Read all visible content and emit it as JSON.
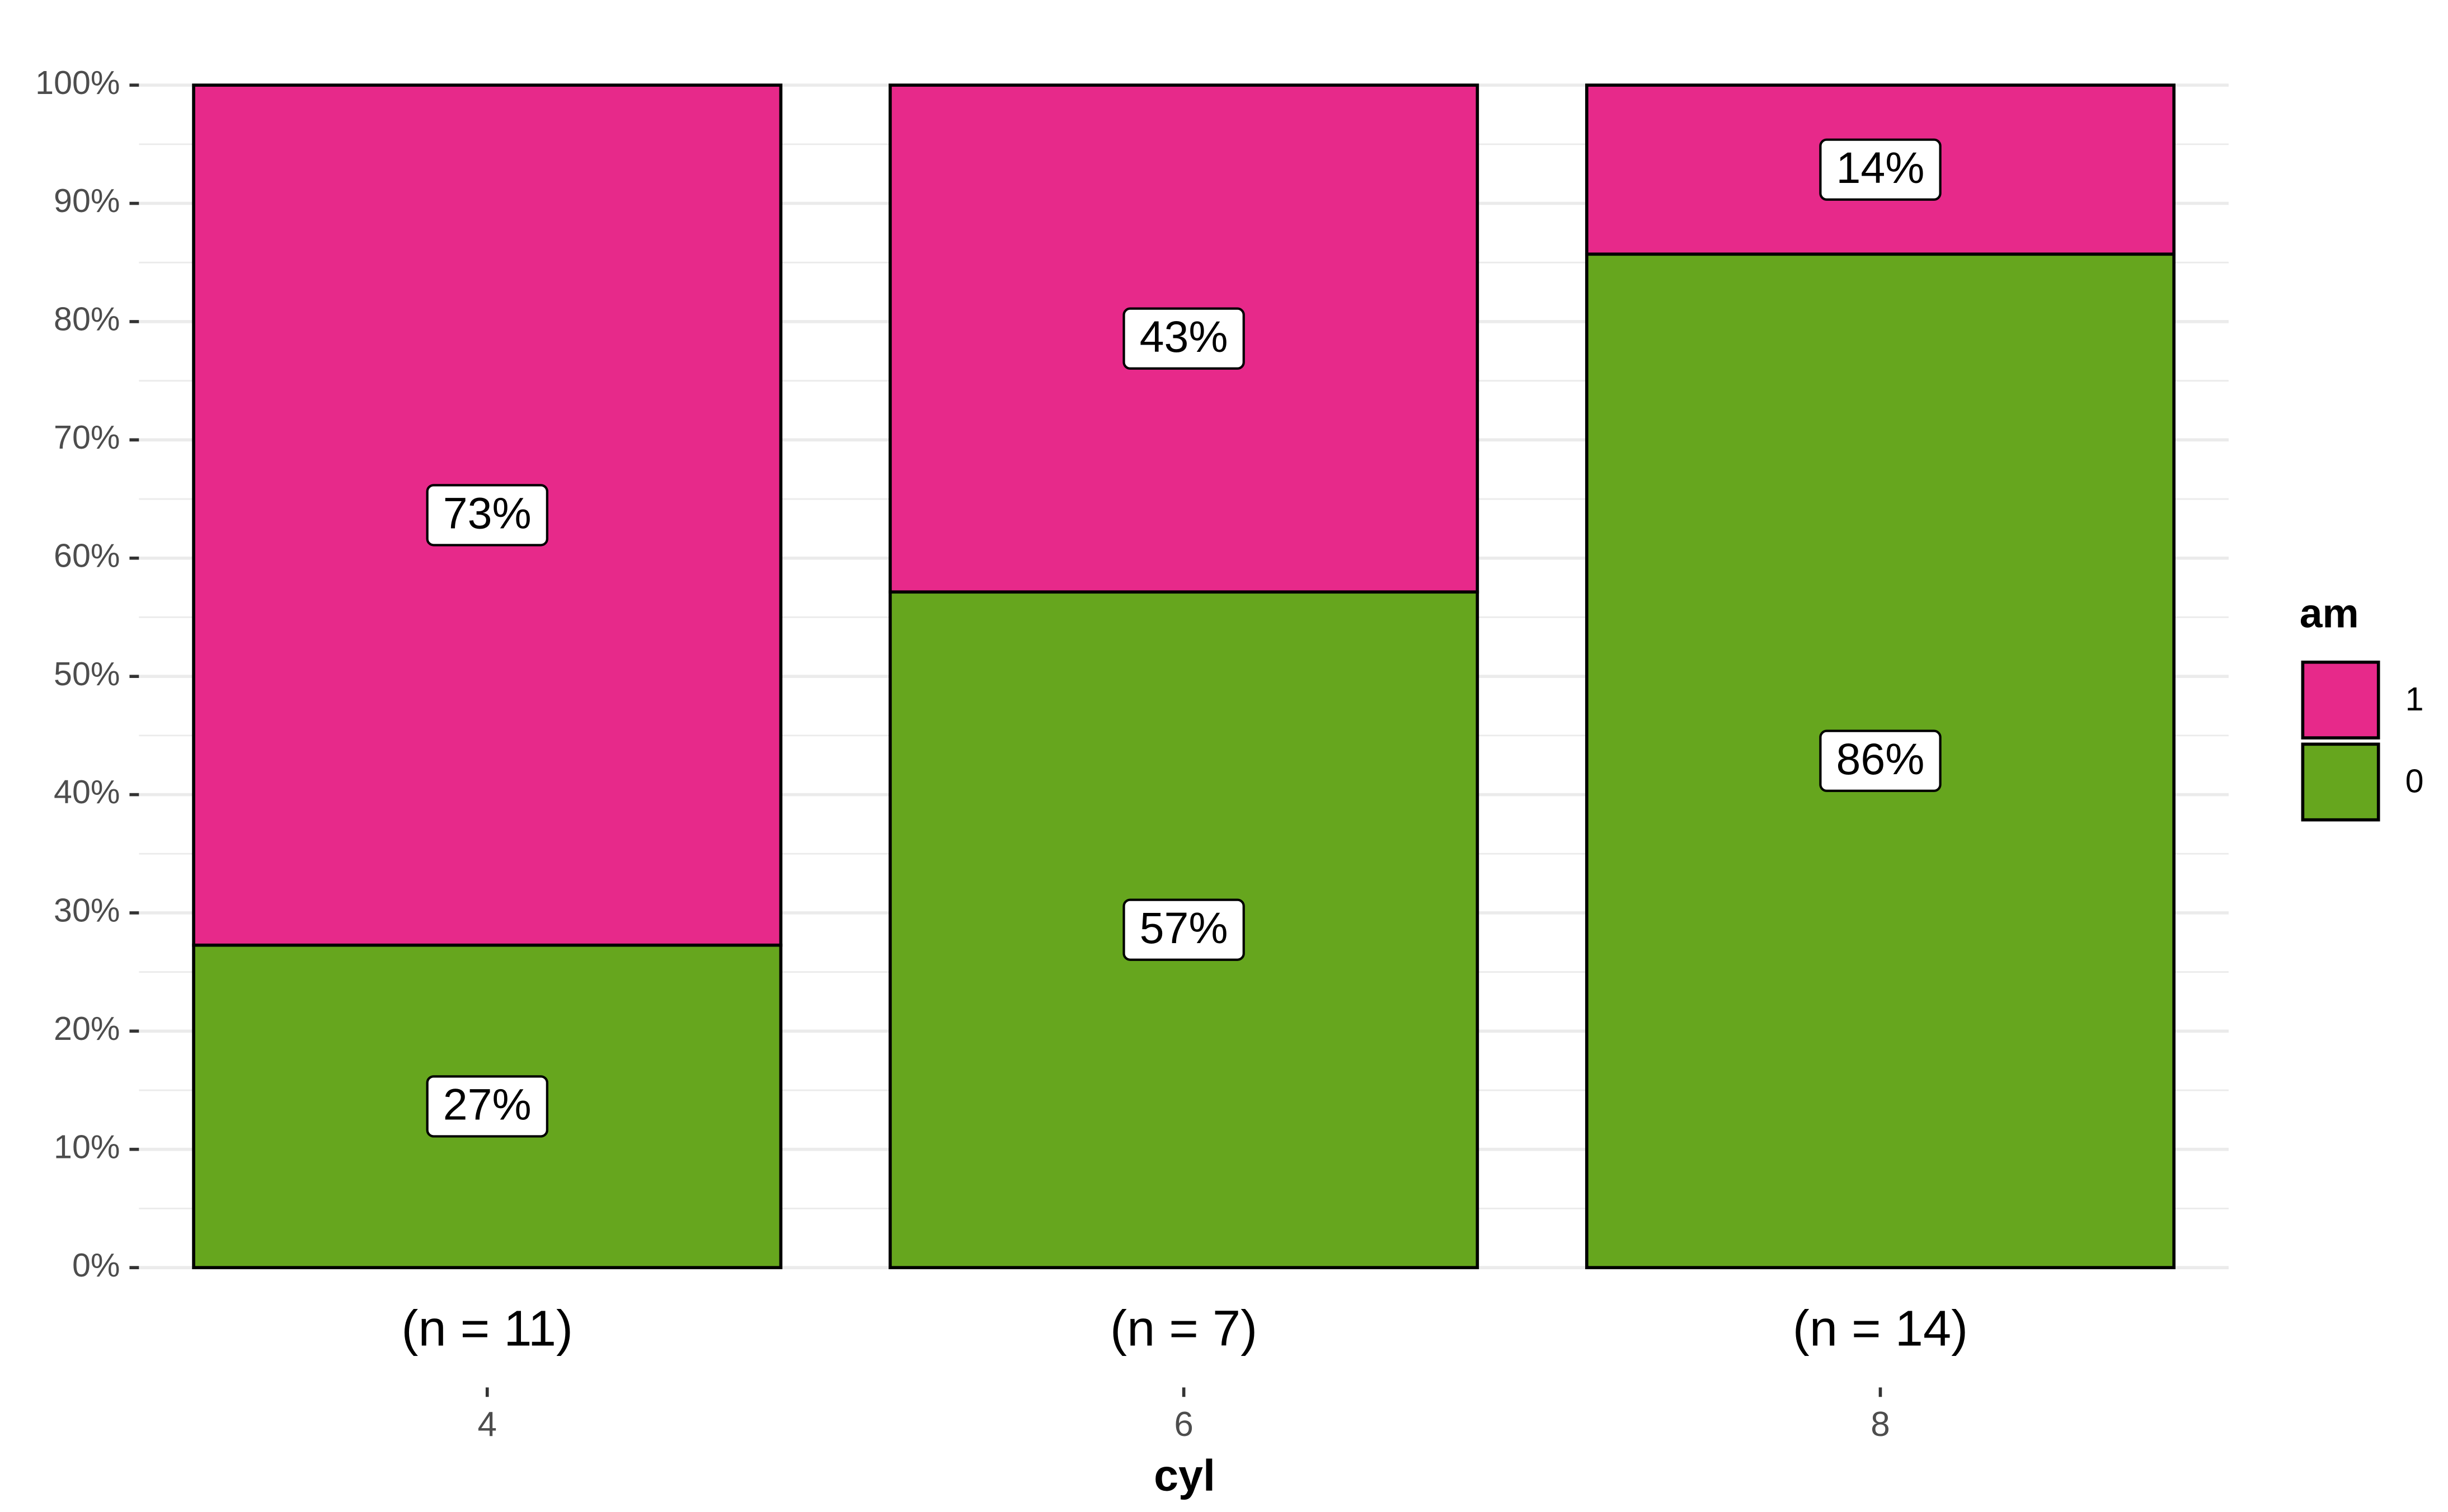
{
  "chart_data": {
    "type": "stacked_bar",
    "x_label": "cyl",
    "categories": [
      "4",
      "6",
      "8"
    ],
    "annotations": [
      "(n = 11)",
      "(n = 7)",
      "(n = 14)"
    ],
    "series": [
      {
        "name": "0",
        "color": "#66a61e",
        "values": [
          27.27,
          57.14,
          85.71
        ],
        "value_labels": [
          "27%",
          "57%",
          "86%"
        ]
      },
      {
        "name": "1",
        "color": "#e7298a",
        "values": [
          72.73,
          42.86,
          14.29
        ],
        "value_labels": [
          "73%",
          "43%",
          "14%"
        ]
      }
    ],
    "legend_title": "am",
    "legend_position": "right",
    "ylim": [
      0,
      100
    ],
    "yticks": [
      {
        "value": 0,
        "label": "0%"
      },
      {
        "value": 10,
        "label": "10%"
      },
      {
        "value": 20,
        "label": "20%"
      },
      {
        "value": 30,
        "label": "30%"
      },
      {
        "value": 40,
        "label": "40%"
      },
      {
        "value": 50,
        "label": "50%"
      },
      {
        "value": 60,
        "label": "60%"
      },
      {
        "value": 70,
        "label": "70%"
      },
      {
        "value": 80,
        "label": "80%"
      },
      {
        "value": 90,
        "label": "90%"
      },
      {
        "value": 100,
        "label": "100%"
      }
    ],
    "grid": true
  }
}
